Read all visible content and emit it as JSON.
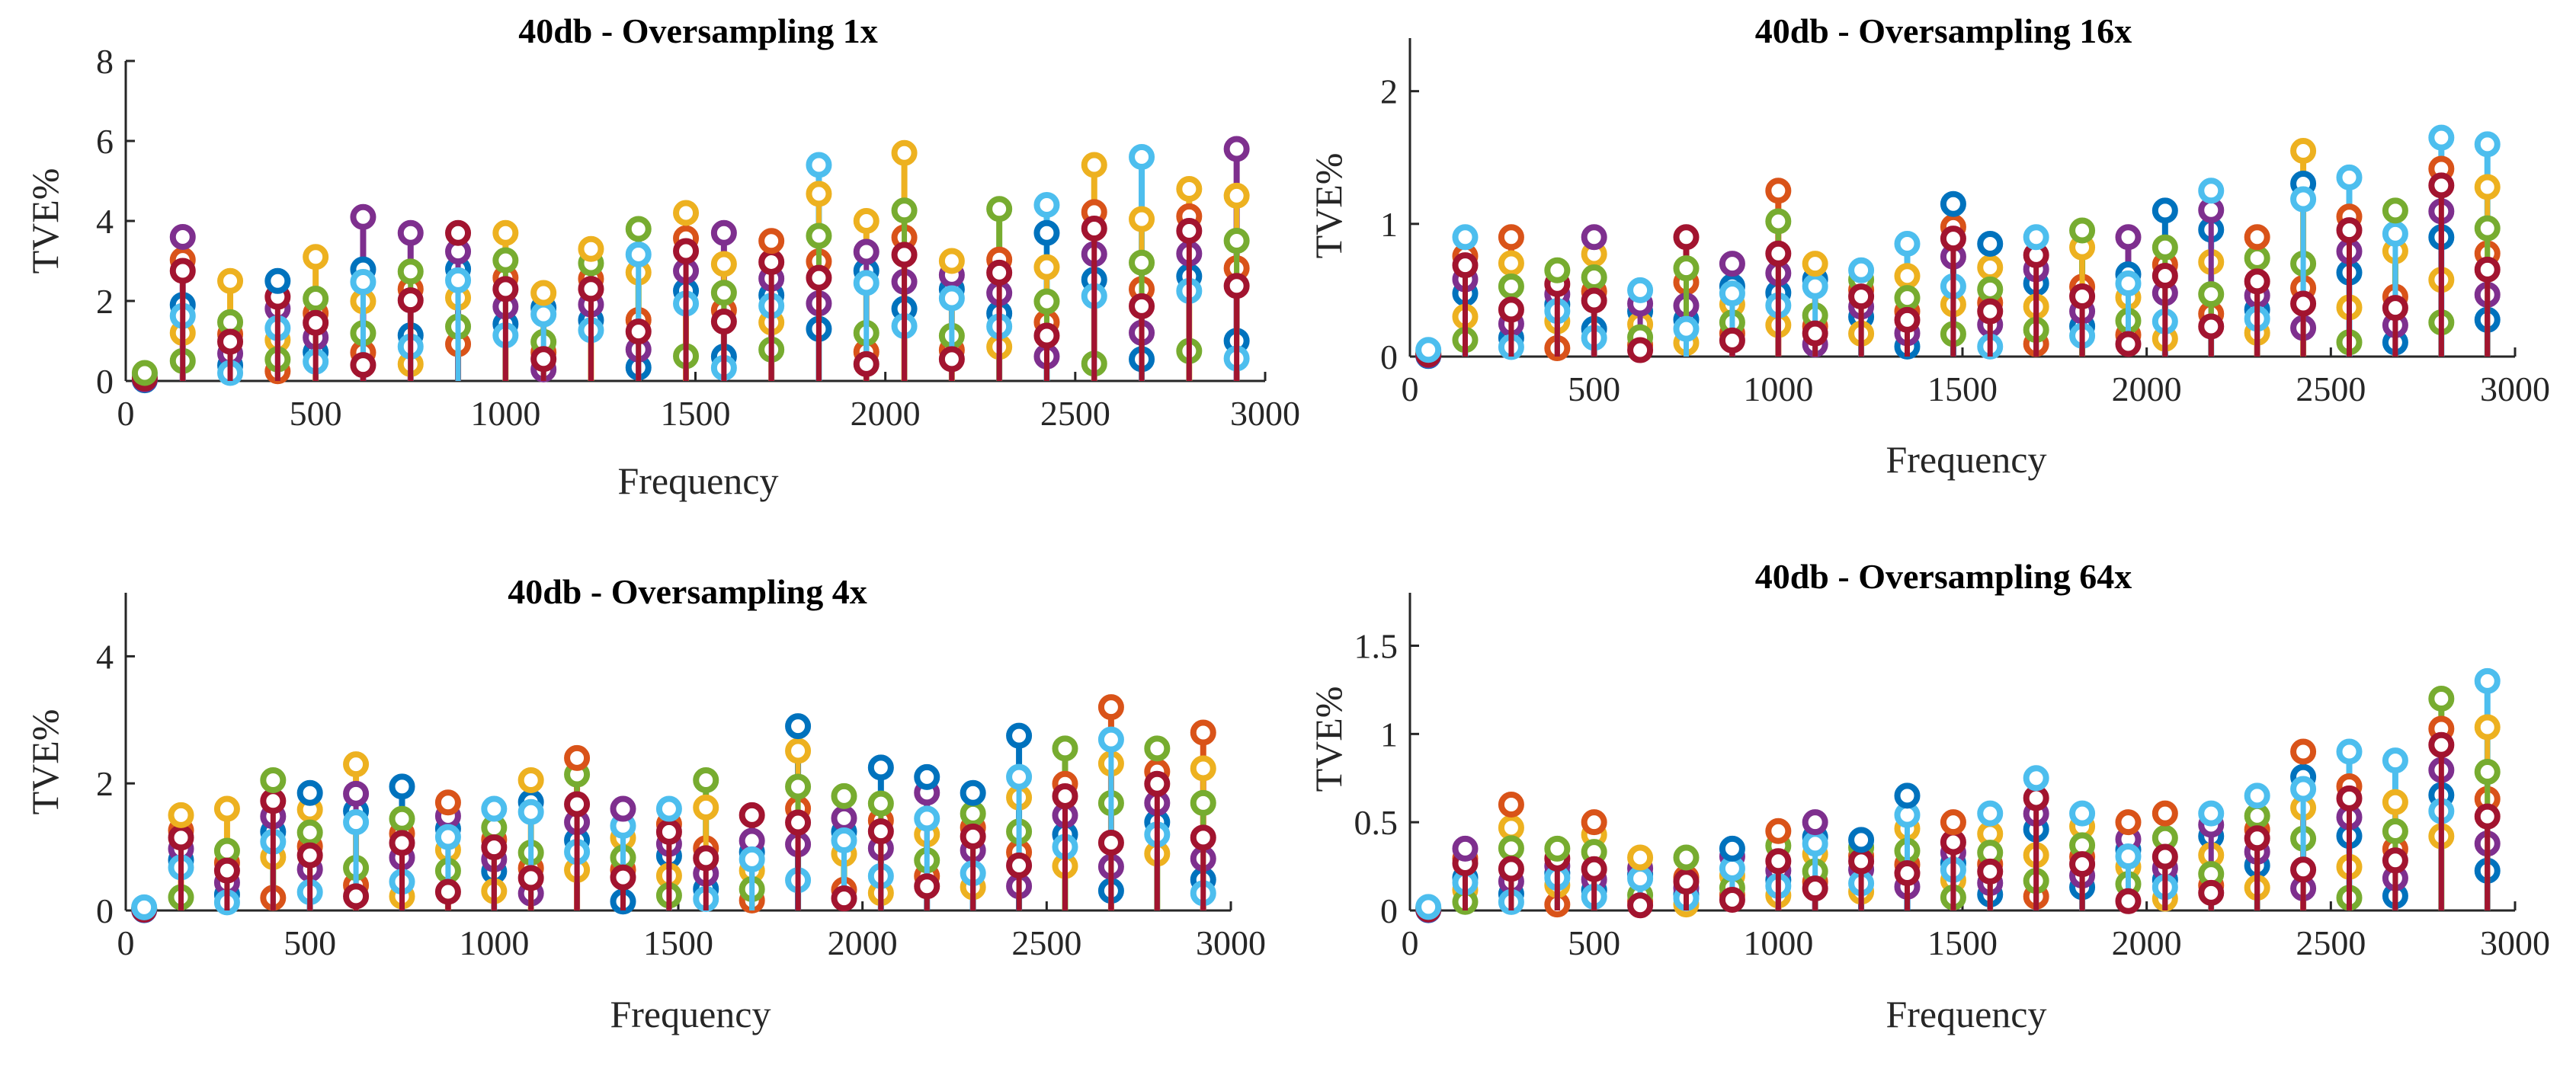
{
  "figure": {
    "colors": [
      "#0072BD",
      "#D95319",
      "#EDB120",
      "#7E2F8E",
      "#77AC30",
      "#4DBEEE",
      "#A2142F"
    ]
  },
  "chart_data": [
    {
      "type": "stem",
      "title": "40db - Oversampling 1x",
      "xlabel": "Frequency",
      "ylabel": "TVE%",
      "xlim": [
        0,
        3000
      ],
      "ylim": [
        0,
        8
      ],
      "xticks": [
        0,
        500,
        1000,
        1500,
        2000,
        2500,
        3000
      ],
      "yticks": [
        0,
        2,
        4,
        6,
        8
      ],
      "x": [
        50,
        150,
        275,
        400,
        500,
        625,
        750,
        875,
        1000,
        1100,
        1225,
        1350,
        1475,
        1575,
        1700,
        1825,
        1950,
        2050,
        2175,
        2300,
        2425,
        2550,
        2675,
        2800,
        2925
      ],
      "series_max": [
        0.2,
        3.6,
        2.5,
        2.5,
        3.1,
        4.1,
        3.7,
        3.7,
        3.7,
        2.2,
        3.3,
        3.8,
        4.2,
        3.7,
        3.5,
        5.4,
        4.0,
        5.7,
        3.0,
        4.3,
        4.4,
        5.4,
        5.6,
        4.8,
        5.8
      ],
      "max_series_index": [
        4,
        3,
        2,
        0,
        2,
        3,
        3,
        6,
        2,
        2,
        2,
        4,
        2,
        3,
        1,
        5,
        2,
        2,
        2,
        4,
        5,
        2,
        5,
        2,
        3
      ]
    },
    {
      "type": "stem",
      "title": "40db - Oversampling 16x",
      "xlabel": "Frequency",
      "ylabel": "TVE%",
      "xlim": [
        0,
        3000
      ],
      "ylim": [
        0,
        2.4
      ],
      "xticks": [
        0,
        500,
        1000,
        1500,
        2000,
        2500,
        3000
      ],
      "yticks": [
        0,
        1,
        2
      ],
      "x": [
        50,
        150,
        275,
        400,
        500,
        625,
        750,
        875,
        1000,
        1100,
        1225,
        1350,
        1475,
        1575,
        1700,
        1825,
        1950,
        2050,
        2175,
        2300,
        2425,
        2550,
        2675,
        2800,
        2925
      ],
      "series_max": [
        0.05,
        0.9,
        0.9,
        0.65,
        0.9,
        0.5,
        0.9,
        0.7,
        1.25,
        0.7,
        0.65,
        0.85,
        1.15,
        0.85,
        0.9,
        0.95,
        0.9,
        1.1,
        1.25,
        0.9,
        1.55,
        1.35,
        1.1,
        1.65,
        1.6
      ],
      "max_series_index": [
        5,
        5,
        1,
        4,
        3,
        5,
        6,
        3,
        1,
        2,
        5,
        5,
        0,
        0,
        5,
        4,
        3,
        0,
        5,
        1,
        2,
        5,
        4,
        5,
        5
      ]
    },
    {
      "type": "stem",
      "title": "40db - Oversampling 4x",
      "xlabel": "Frequency",
      "ylabel": "TVE%",
      "xlim": [
        0,
        3000
      ],
      "ylim": [
        0,
        5
      ],
      "xticks": [
        0,
        500,
        1000,
        1500,
        2000,
        2500,
        3000
      ],
      "yticks": [
        0,
        2,
        4
      ],
      "x": [
        50,
        150,
        275,
        400,
        500,
        625,
        750,
        875,
        1000,
        1100,
        1225,
        1350,
        1475,
        1575,
        1700,
        1825,
        1950,
        2050,
        2175,
        2300,
        2425,
        2550,
        2675,
        2800,
        2925
      ],
      "series_max": [
        0.05,
        1.5,
        1.6,
        2.05,
        1.85,
        2.3,
        1.95,
        1.7,
        1.6,
        2.05,
        2.4,
        1.6,
        1.6,
        2.05,
        1.5,
        2.9,
        1.8,
        2.25,
        2.1,
        1.85,
        2.75,
        2.55,
        3.2,
        2.55,
        2.8
      ],
      "max_series_index": [
        5,
        2,
        2,
        4,
        0,
        2,
        0,
        1,
        5,
        2,
        1,
        3,
        5,
        4,
        6,
        0,
        4,
        0,
        0,
        0,
        0,
        4,
        1,
        4,
        1
      ]
    },
    {
      "type": "stem",
      "title": "40db - Oversampling 64x",
      "xlabel": "Frequency",
      "ylabel": "TVE%",
      "xlim": [
        0,
        3000
      ],
      "ylim": [
        0,
        1.8
      ],
      "xticks": [
        0,
        500,
        1000,
        1500,
        2000,
        2500,
        3000
      ],
      "yticks": [
        0,
        0.5,
        1,
        1.5
      ],
      "x": [
        50,
        150,
        275,
        400,
        500,
        625,
        750,
        875,
        1000,
        1100,
        1225,
        1350,
        1475,
        1575,
        1700,
        1825,
        1950,
        2050,
        2175,
        2300,
        2425,
        2550,
        2675,
        2800,
        2925
      ],
      "series_max": [
        0.02,
        0.35,
        0.6,
        0.35,
        0.5,
        0.3,
        0.3,
        0.35,
        0.45,
        0.5,
        0.4,
        0.65,
        0.5,
        0.55,
        0.75,
        0.55,
        0.5,
        0.55,
        0.55,
        0.65,
        0.9,
        0.9,
        0.85,
        1.2,
        1.3
      ],
      "max_series_index": [
        5,
        3,
        1,
        4,
        1,
        2,
        4,
        0,
        1,
        3,
        0,
        0,
        1,
        5,
        5,
        5,
        1,
        1,
        5,
        5,
        1,
        5,
        5,
        4,
        5
      ]
    }
  ]
}
